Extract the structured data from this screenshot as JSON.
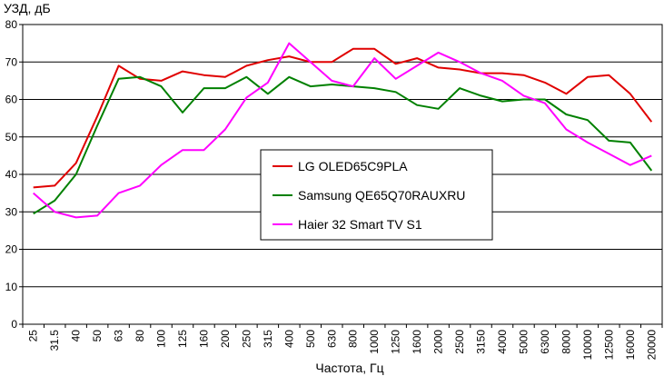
{
  "chart_data": {
    "type": "line",
    "ylabel": "УЗД, дБ",
    "xlabel": "Частота, Гц",
    "ylim": [
      0,
      80
    ],
    "yticks": [
      0,
      10,
      20,
      30,
      40,
      50,
      60,
      70,
      80
    ],
    "grid": "horizontal",
    "legend_position": "center",
    "categories": [
      "25",
      "31.5",
      "40",
      "50",
      "63",
      "80",
      "100",
      "125",
      "160",
      "200",
      "250",
      "315",
      "400",
      "500",
      "630",
      "800",
      "1000",
      "1250",
      "1600",
      "2000",
      "2500",
      "3150",
      "4000",
      "5000",
      "6300",
      "8000",
      "10000",
      "12500",
      "16000",
      "20000"
    ],
    "series": [
      {
        "name": "LG OLED65C9PLA",
        "color": "#e00000",
        "values": [
          36.5,
          37,
          43,
          55.5,
          69,
          65.5,
          65,
          67.5,
          66.5,
          66,
          69,
          70.5,
          71.5,
          70,
          70,
          73.5,
          73.5,
          69.5,
          71,
          68.5,
          68,
          67,
          67,
          66.5,
          64.5,
          61.5,
          66,
          66.5,
          61.5,
          54
        ]
      },
      {
        "name": "Samsung QE65Q70RAUXRU",
        "color": "#008000",
        "values": [
          29.5,
          33,
          40,
          53,
          65.5,
          66,
          63.5,
          56.5,
          63,
          63,
          66,
          61.5,
          66,
          63.5,
          64,
          63.5,
          63,
          62,
          58.5,
          57.5,
          63,
          61,
          59.5,
          60,
          60,
          56,
          54.5,
          49,
          48.5,
          41
        ]
      },
      {
        "name": "Haier 32 Smart TV S1",
        "color": "#ff00ff",
        "values": [
          35,
          30,
          28.5,
          29,
          35,
          37,
          42.5,
          46.5,
          46.5,
          52,
          60.5,
          64.5,
          75,
          70,
          65,
          63.5,
          71,
          65.5,
          69,
          72.5,
          70,
          67,
          65,
          61,
          59,
          52,
          48.5,
          45.5,
          42.5,
          45
        ]
      }
    ]
  }
}
